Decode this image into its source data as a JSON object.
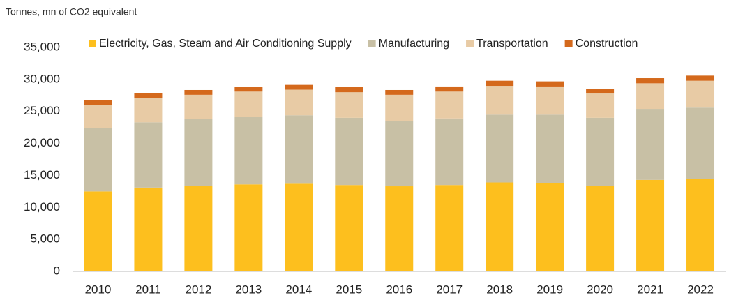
{
  "chart_data": {
    "type": "stacked_bar",
    "title": "Tonnes, mn of CO2 equivalent",
    "categories": [
      "2010",
      "2011",
      "2012",
      "2013",
      "2014",
      "2015",
      "2016",
      "2017",
      "2018",
      "2019",
      "2020",
      "2021",
      "2022"
    ],
    "series": [
      {
        "name": "Electricity, Gas, Steam and Air Conditioning Supply",
        "color": "#fdbf1e",
        "values": [
          12500,
          13100,
          13400,
          13600,
          13700,
          13500,
          13300,
          13500,
          13900,
          13800,
          13400,
          14300,
          14500
        ]
      },
      {
        "name": "Manufacturing",
        "color": "#c8c0a5",
        "values": [
          9900,
          10200,
          10400,
          10600,
          10700,
          10500,
          10200,
          10400,
          10600,
          10700,
          10600,
          11100,
          11100
        ]
      },
      {
        "name": "Transportation",
        "color": "#e8cba5",
        "values": [
          3600,
          3800,
          3800,
          3900,
          4000,
          4000,
          4100,
          4200,
          4500,
          4400,
          3800,
          4000,
          4200
        ]
      },
      {
        "name": "Construction",
        "color": "#d4691c",
        "values": [
          750,
          750,
          750,
          750,
          750,
          800,
          750,
          800,
          800,
          800,
          750,
          800,
          800
        ]
      }
    ],
    "ylim": [
      0,
      35000
    ],
    "yticks": [
      0,
      {
        "value": 5000,
        "label": "5,000"
      },
      {
        "value": 10000,
        "label": "10,000"
      },
      {
        "value": 15000,
        "label": "15,000"
      },
      {
        "value": 20000,
        "label": "20,000"
      },
      {
        "value": 25000,
        "label": "25,000"
      },
      {
        "value": 30000,
        "label": "30,000"
      },
      {
        "value": 35000,
        "label": "35,000"
      }
    ],
    "grid": false,
    "legend": "top"
  }
}
